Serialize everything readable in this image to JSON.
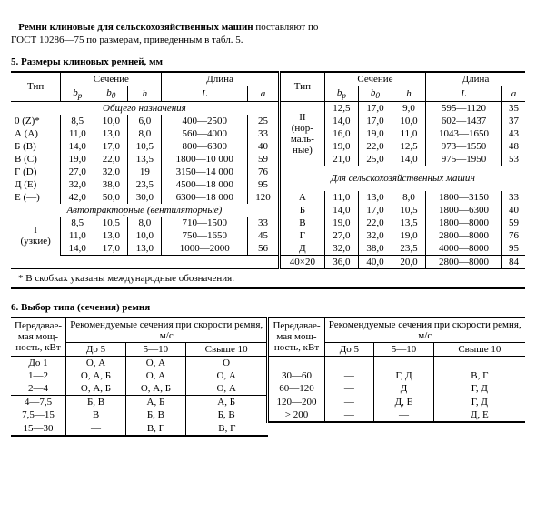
{
  "intro": {
    "line1a": "Ремни клиновые для сельскохозяйственных машин",
    "line1b": " поставляют по",
    "line2": "ГОСТ 10286—75 по размерам, приведенным в табл. 5."
  },
  "t5": {
    "title": "5. Размеры клиновых ремней, мм",
    "hdr": {
      "tip": "Тип",
      "sech": "Сечение",
      "dlina": "Длина",
      "bp": "b",
      "bpsub": "р",
      "b0": "b",
      "b0sub": "0",
      "h": "h",
      "L": "L",
      "a": "a"
    },
    "sec1": "Общего назначения",
    "sec2": "Автотракторные (вентиляторные)",
    "sec3": "Для сельскохозяйственных машин",
    "left_gen": [
      [
        "0 (Z)*",
        "8,5",
        "10,0",
        "6,0",
        "400—2500",
        "25"
      ],
      [
        "А (А)",
        "11,0",
        "13,0",
        "8,0",
        "560—4000",
        "33"
      ],
      [
        "Б (В)",
        "14,0",
        "17,0",
        "10,5",
        "800—6300",
        "40"
      ],
      [
        "В (С)",
        "19,0",
        "22,0",
        "13,5",
        "1800—10 000",
        "59"
      ],
      [
        "Г (D)",
        "27,0",
        "32,0",
        "19",
        "3150—14 000",
        "76"
      ],
      [
        "Д (Е)",
        "32,0",
        "38,0",
        "23,5",
        "4500—18 000",
        "95"
      ],
      [
        "Е (—)",
        "42,0",
        "50,0",
        "30,0",
        "6300—18 000",
        "120"
      ]
    ],
    "left_avto_lbl": [
      "I",
      "(узкие)"
    ],
    "left_avto": [
      [
        "8,5",
        "10,5",
        "8,0",
        "710—1500",
        "33"
      ],
      [
        "11,0",
        "13,0",
        "10,0",
        "750—1650",
        "45"
      ],
      [
        "14,0",
        "17,0",
        "13,0",
        "1000—2000",
        "56"
      ]
    ],
    "right_norm_lbl": [
      "II",
      "(нор-",
      "маль-",
      "ные)"
    ],
    "right_norm": [
      [
        "12,5",
        "17,0",
        "9,0",
        "595—1120",
        "35"
      ],
      [
        "14,0",
        "17,0",
        "10,0",
        "602—1437",
        "37"
      ],
      [
        "16,0",
        "19,0",
        "11,0",
        "1043—1650",
        "43"
      ],
      [
        "19,0",
        "22,0",
        "12,5",
        "973—1550",
        "48"
      ],
      [
        "21,0",
        "25,0",
        "14,0",
        "975—1950",
        "53"
      ]
    ],
    "right_sel": [
      [
        "А",
        "11,0",
        "13,0",
        "8,0",
        "1800—3150",
        "33"
      ],
      [
        "Б",
        "14,0",
        "17,0",
        "10,5",
        "1800—6300",
        "40"
      ],
      [
        "В",
        "19,0",
        "22,0",
        "13,5",
        "1800—8000",
        "59"
      ],
      [
        "Г",
        "27,0",
        "32,0",
        "19,0",
        "2800—8000",
        "76"
      ],
      [
        "Д",
        "32,0",
        "38,0",
        "23,5",
        "4000—8000",
        "95"
      ],
      [
        "40×20",
        "36,0",
        "40,0",
        "20,0",
        "2800—8000",
        "84"
      ]
    ],
    "footnote": "* В скобках указаны международные обозначения."
  },
  "t6": {
    "title": "6. Выбор типа (сечения) ремня",
    "hdr": {
      "pwr": "Передавае-\nмая мощ-\nность, кВт",
      "rec": "Рекомендуемые сечения при скорости ремня, м/с",
      "c1": "До 5",
      "c2": "5—10",
      "c3": "Свыше 10"
    },
    "left": [
      [
        "До 1",
        "О, А",
        "О, А",
        "О"
      ],
      [
        "1—2",
        "О, А, Б",
        "О, А",
        "О, А"
      ],
      [
        "2—4",
        "О, А, Б",
        "О, А, Б",
        "О, А"
      ]
    ],
    "left2": [
      [
        "4—7,5",
        "Б, В",
        "А, Б",
        "А, Б"
      ],
      [
        "7,5—15",
        "В",
        "Б, В",
        "Б, В"
      ],
      [
        "15—30",
        "—",
        "В, Г",
        "В, Г"
      ]
    ],
    "right": [
      [
        "30—60",
        "—",
        "Г, Д",
        "В, Г"
      ],
      [
        "60—120",
        "—",
        "Д",
        "Г, Д"
      ],
      [
        "120—200",
        "—",
        "Д, Е",
        "Г, Д"
      ],
      [
        "> 200",
        "—",
        "—",
        "Д, Е"
      ]
    ]
  }
}
